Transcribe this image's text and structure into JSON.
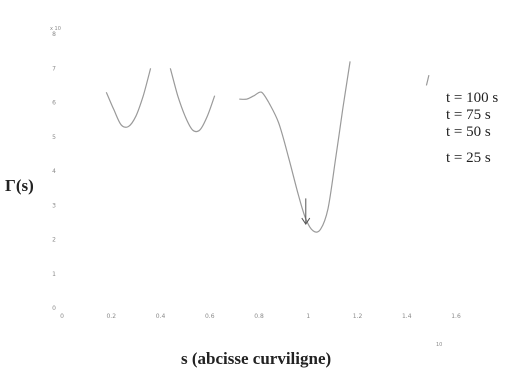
{
  "chart_data": {
    "type": "line",
    "xlabel": "s (abcisse curviligne)",
    "ylabel": "Γ(s)",
    "xlim": [
      0,
      1.6
    ],
    "ylim": [
      0,
      8
    ],
    "x_exponent_label": "10",
    "y_exponent_label": "x 10",
    "xticks": [
      "0",
      "0.2",
      "0.4",
      "0.6",
      "0.8",
      "1",
      "1.2",
      "1.4",
      "1.6"
    ],
    "yticks": [
      "0",
      "1",
      "2",
      "3",
      "4",
      "5",
      "6",
      "7",
      "8"
    ],
    "legend_placement": "right",
    "legend": [
      "t = 100 s",
      "t = 75 s",
      "t = 50 s",
      "t = 25 s"
    ],
    "series": [
      {
        "x": [
          0.18,
          0.21,
          0.24,
          0.27,
          0.3,
          0.33,
          0.36
        ],
        "y": [
          6.3,
          5.8,
          5.35,
          5.3,
          5.6,
          6.2,
          7.0
        ]
      },
      {
        "x": [
          0.44,
          0.47,
          0.5,
          0.53,
          0.56,
          0.59,
          0.62
        ],
        "y": [
          7.0,
          6.2,
          5.6,
          5.2,
          5.2,
          5.6,
          6.2
        ]
      },
      {
        "x": [
          0.72,
          0.75,
          0.78,
          0.81,
          0.84
        ],
        "y": [
          6.1,
          6.1,
          6.2,
          6.3,
          6.0
        ]
      },
      {
        "x": [
          0.84,
          0.88,
          0.92,
          0.96,
          0.99,
          1.02,
          1.05,
          1.08,
          1.11,
          1.14,
          1.17
        ],
        "y": [
          6.0,
          5.4,
          4.4,
          3.3,
          2.6,
          2.25,
          2.3,
          2.9,
          4.3,
          5.8,
          7.2
        ]
      },
      {
        "x": [
          1.48,
          1.49
        ],
        "y": [
          6.5,
          6.8
        ]
      }
    ],
    "annotation": {
      "type": "arrow",
      "x": 0.99,
      "y_from": 3.2,
      "y_to": 2.45
    }
  }
}
